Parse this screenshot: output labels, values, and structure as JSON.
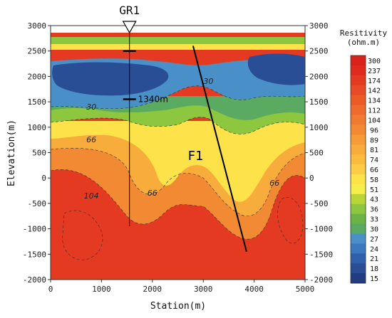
{
  "chart_data": {
    "type": "heatmap",
    "title": "",
    "xlabel": "Station(m)",
    "ylabel": "Elevation(m)",
    "xlim": [
      0,
      5000
    ],
    "ylim": [
      -2000,
      3000
    ],
    "xticks": [
      0,
      1000,
      2000,
      3000,
      4000,
      5000
    ],
    "yticks": [
      3000,
      2500,
      2000,
      1500,
      1000,
      500,
      0,
      -500,
      -1000,
      -1500,
      -2000
    ],
    "topography_y": 2820,
    "colorbar": {
      "title_line1": "Resitivity",
      "title_line2": "(ohm.m)",
      "levels": [
        300,
        237,
        174,
        142,
        134,
        112,
        104,
        96,
        89,
        81,
        74,
        66,
        58,
        51,
        43,
        36,
        33,
        30,
        27,
        24,
        21,
        18,
        15
      ],
      "colors": [
        "#d8231c",
        "#e02a1e",
        "#e53a22",
        "#e84a26",
        "#ec5a28",
        "#ef6a2c",
        "#f07a30",
        "#f28a34",
        "#f59c38",
        "#f7ac3c",
        "#f9bc40",
        "#fbcc44",
        "#fde24a",
        "#f6ee4a",
        "#b8d63a",
        "#8dc63f",
        "#6ab344",
        "#5aaa62",
        "#4a90c8",
        "#3a78bf",
        "#3060aa",
        "#2a4e96",
        "#223c82"
      ]
    },
    "zones": [
      {
        "name": "conductive-layer",
        "value": 21,
        "points": [
          [
            0,
            2350
          ],
          [
            800,
            2300
          ],
          [
            1700,
            2400
          ],
          [
            2200,
            2350
          ],
          [
            2500,
            2250
          ],
          [
            3000,
            2300
          ],
          [
            3500,
            2350
          ],
          [
            4200,
            2450
          ],
          [
            5000,
            2350
          ],
          [
            5000,
            1700
          ],
          [
            4200,
            1650
          ],
          [
            3500,
            1800
          ],
          [
            2700,
            1900
          ],
          [
            2400,
            1950
          ],
          [
            2200,
            2000
          ],
          [
            1700,
            1650
          ],
          [
            1200,
            1500
          ],
          [
            600,
            1550
          ],
          [
            0,
            1450
          ]
        ]
      },
      {
        "name": "shallow-green",
        "value": 40,
        "points": [
          [
            0,
            2800
          ],
          [
            5000,
            2800
          ],
          [
            5000,
            2400
          ],
          [
            0,
            2400
          ]
        ]
      }
    ],
    "contour_labels": [
      {
        "text": "30",
        "x": 3100,
        "y": 1850
      },
      {
        "text": "30",
        "x": 800,
        "y": 1350
      },
      {
        "text": "66",
        "x": 800,
        "y": 700
      },
      {
        "text": "66",
        "x": 2000,
        "y": -350
      },
      {
        "text": "66",
        "x": 4400,
        "y": -150
      },
      {
        "text": "104",
        "x": 800,
        "y": -400
      }
    ],
    "annotations": {
      "station": "GR1",
      "station_x": 1550,
      "well_depth_label": "1340m",
      "well_bottom_y": -950,
      "fault_label": "F1",
      "fault_line": [
        [
          2800,
          2600
        ],
        [
          3850,
          -1450
        ]
      ],
      "well_marks": [
        2500,
        1550
      ]
    }
  }
}
